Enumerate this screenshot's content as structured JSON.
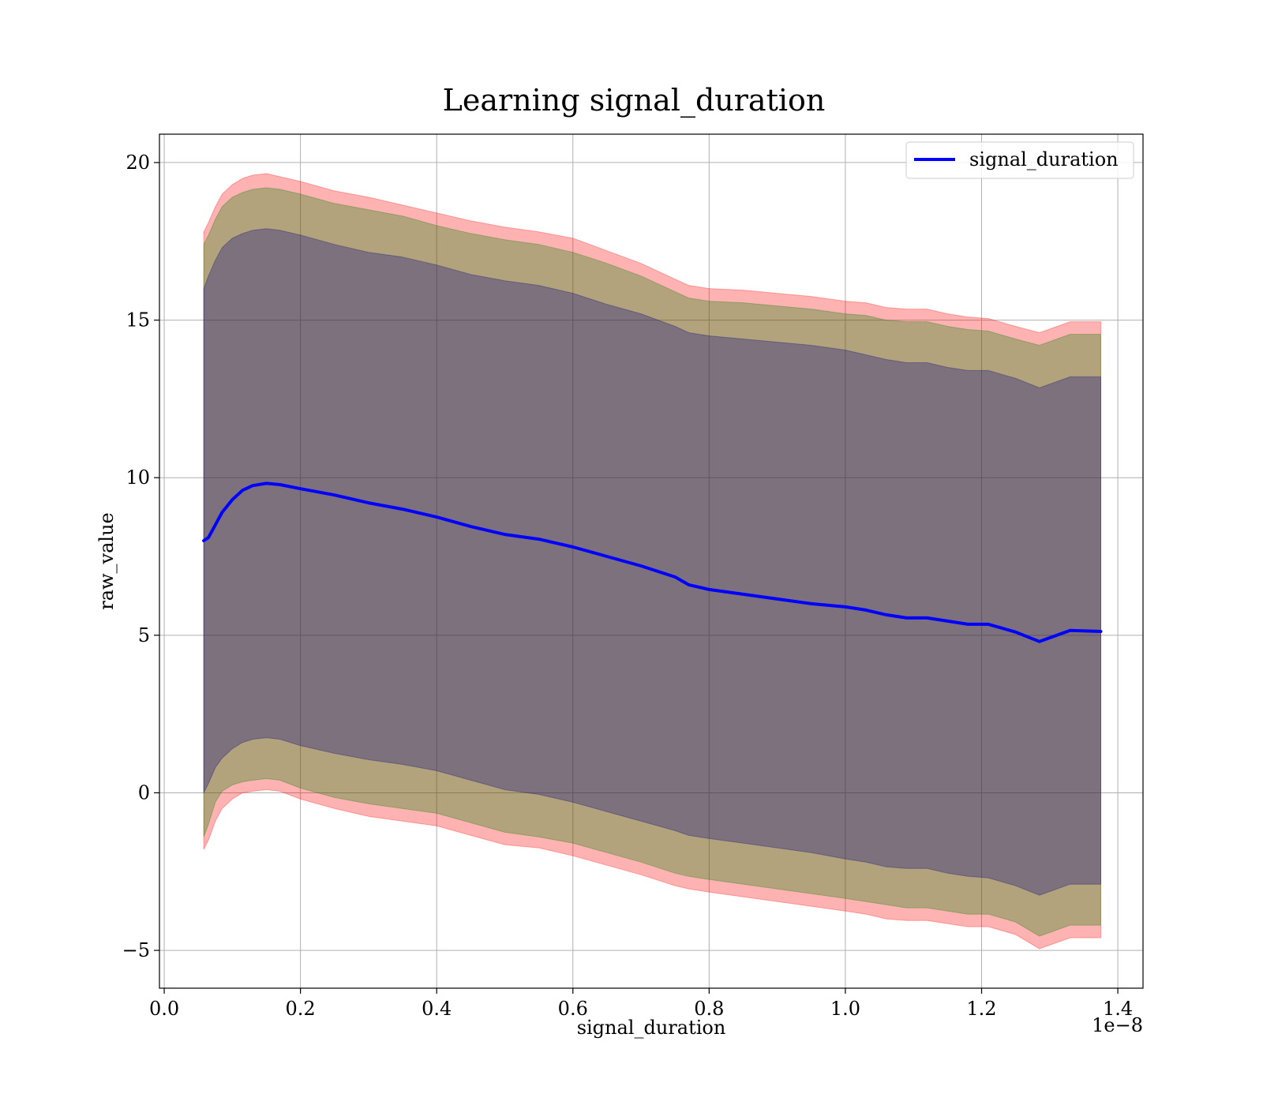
{
  "chart_data": {
    "type": "area",
    "title": "Learning signal_duration",
    "xlabel": "signal_duration",
    "ylabel": "raw_value",
    "x_offset_label": "1e−8",
    "xlim": [
      -0.007,
      1.437
    ],
    "ylim": [
      -6.2,
      20.9
    ],
    "x_ticks": [
      0.0,
      0.2,
      0.4,
      0.6,
      0.8,
      1.0,
      1.2,
      1.4
    ],
    "x_tick_labels": [
      "0.0",
      "0.2",
      "0.4",
      "0.6",
      "0.8",
      "1.0",
      "1.2",
      "1.4"
    ],
    "y_ticks": [
      -5,
      0,
      5,
      10,
      15,
      20
    ],
    "y_tick_labels": [
      "−5",
      "0",
      "5",
      "10",
      "15",
      "20"
    ],
    "grid": true,
    "legend_position": "top-right",
    "series": [
      {
        "name": "signal_duration",
        "color": "#0000ff",
        "x": [
          0.058,
          0.065,
          0.075,
          0.085,
          0.1,
          0.115,
          0.13,
          0.15,
          0.17,
          0.2,
          0.25,
          0.3,
          0.35,
          0.4,
          0.45,
          0.5,
          0.55,
          0.6,
          0.65,
          0.7,
          0.75,
          0.77,
          0.8,
          0.85,
          0.9,
          0.95,
          1.0,
          1.03,
          1.06,
          1.09,
          1.12,
          1.15,
          1.18,
          1.21,
          1.25,
          1.285,
          1.33,
          1.375
        ],
        "y": [
          8.0,
          8.1,
          8.5,
          8.9,
          9.3,
          9.6,
          9.75,
          9.82,
          9.78,
          9.65,
          9.45,
          9.2,
          9.0,
          8.75,
          8.45,
          8.2,
          8.05,
          7.8,
          7.5,
          7.2,
          6.85,
          6.6,
          6.45,
          6.3,
          6.15,
          6.0,
          5.9,
          5.8,
          5.65,
          5.55,
          5.55,
          5.45,
          5.35,
          5.35,
          5.1,
          4.8,
          5.15,
          5.12
        ]
      }
    ],
    "bands": [
      {
        "fill": "#ff0000",
        "opacity": 0.3,
        "lower": [
          -1.8,
          -1.5,
          -0.9,
          -0.5,
          -0.2,
          0.0,
          0.05,
          0.1,
          0.05,
          -0.2,
          -0.5,
          -0.75,
          -0.9,
          -1.05,
          -1.35,
          -1.65,
          -1.75,
          -2.0,
          -2.3,
          -2.6,
          -2.95,
          -3.05,
          -3.15,
          -3.3,
          -3.45,
          -3.6,
          -3.75,
          -3.85,
          -4.0,
          -4.05,
          -4.05,
          -4.15,
          -4.25,
          -4.25,
          -4.5,
          -4.95,
          -4.6,
          -4.6
        ],
        "upper": [
          17.8,
          18.1,
          18.6,
          19.0,
          19.3,
          19.5,
          19.6,
          19.65,
          19.55,
          19.4,
          19.1,
          18.9,
          18.65,
          18.4,
          18.15,
          17.95,
          17.8,
          17.6,
          17.2,
          16.8,
          16.3,
          16.1,
          16.0,
          15.95,
          15.85,
          15.75,
          15.6,
          15.55,
          15.4,
          15.35,
          15.35,
          15.2,
          15.1,
          15.05,
          14.8,
          14.6,
          14.95,
          14.95
        ]
      },
      {
        "fill": "#008000",
        "opacity": 0.3,
        "lower": [
          -1.4,
          -1.0,
          -0.3,
          0.05,
          0.25,
          0.35,
          0.4,
          0.45,
          0.4,
          0.15,
          -0.15,
          -0.35,
          -0.5,
          -0.65,
          -0.95,
          -1.25,
          -1.4,
          -1.6,
          -1.9,
          -2.2,
          -2.55,
          -2.65,
          -2.75,
          -2.9,
          -3.05,
          -3.2,
          -3.35,
          -3.45,
          -3.55,
          -3.65,
          -3.65,
          -3.75,
          -3.85,
          -3.85,
          -4.1,
          -4.55,
          -4.2,
          -4.2
        ],
        "upper": [
          17.4,
          17.7,
          18.2,
          18.6,
          18.9,
          19.05,
          19.15,
          19.2,
          19.15,
          19.0,
          18.7,
          18.5,
          18.3,
          18.0,
          17.75,
          17.55,
          17.4,
          17.15,
          16.8,
          16.4,
          15.9,
          15.7,
          15.6,
          15.55,
          15.45,
          15.35,
          15.2,
          15.15,
          15.0,
          14.95,
          14.95,
          14.8,
          14.7,
          14.65,
          14.4,
          14.2,
          14.55,
          14.55
        ]
      },
      {
        "fill": "#000080",
        "opacity": 0.3,
        "lower": [
          0.0,
          0.3,
          0.8,
          1.1,
          1.4,
          1.6,
          1.7,
          1.75,
          1.7,
          1.5,
          1.25,
          1.05,
          0.9,
          0.7,
          0.4,
          0.1,
          -0.05,
          -0.3,
          -0.6,
          -0.9,
          -1.2,
          -1.35,
          -1.45,
          -1.6,
          -1.75,
          -1.9,
          -2.1,
          -2.2,
          -2.35,
          -2.4,
          -2.4,
          -2.55,
          -2.65,
          -2.7,
          -2.95,
          -3.25,
          -2.9,
          -2.9
        ],
        "upper": [
          16.0,
          16.4,
          16.9,
          17.3,
          17.6,
          17.75,
          17.85,
          17.9,
          17.85,
          17.7,
          17.4,
          17.15,
          17.0,
          16.75,
          16.45,
          16.25,
          16.1,
          15.85,
          15.5,
          15.2,
          14.8,
          14.6,
          14.5,
          14.4,
          14.3,
          14.2,
          14.05,
          13.9,
          13.75,
          13.65,
          13.65,
          13.5,
          13.4,
          13.4,
          13.15,
          12.85,
          13.2,
          13.2
        ]
      }
    ]
  }
}
